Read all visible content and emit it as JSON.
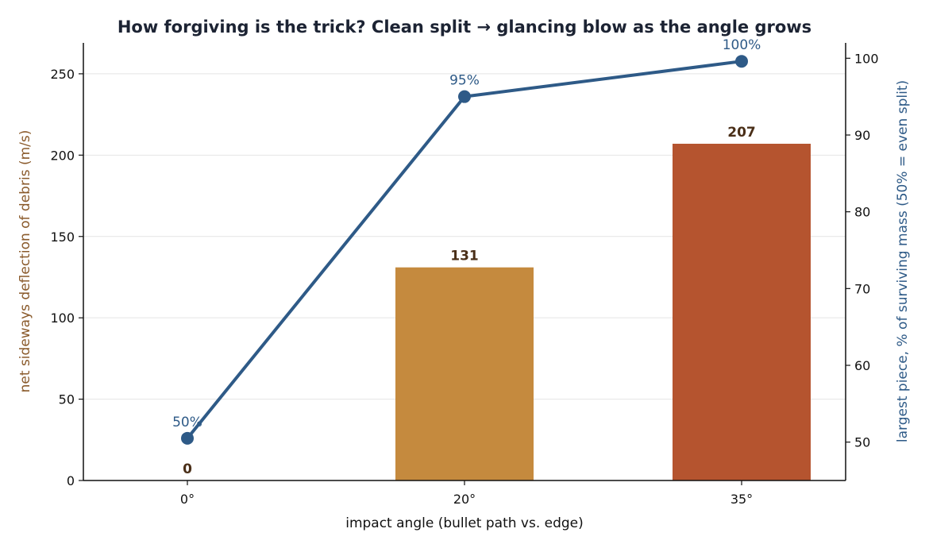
{
  "chart_data": {
    "type": "bar",
    "title": "How forgiving is the trick? Clean split → glancing blow as the angle grows",
    "xlabel": "impact angle (bullet path vs. edge)",
    "categories": [
      "0°",
      "20°",
      "35°"
    ],
    "series": [
      {
        "axis": "left",
        "type": "bar",
        "values": [
          0,
          131,
          207
        ],
        "labels": [
          "0",
          "131",
          "207"
        ],
        "colors": [
          "#c58a3e",
          "#c58a3e",
          "#b5542f"
        ]
      },
      {
        "axis": "right",
        "type": "line",
        "values": [
          50.5,
          95,
          99.6
        ],
        "labels": [
          "50%",
          "95%",
          "100%"
        ],
        "color": "#2e5a87"
      }
    ],
    "ylabel": "net sideways deflection of debris (m/s)",
    "ylim": [
      0,
      269
    ],
    "yticks": [
      0,
      50,
      100,
      150,
      200,
      250
    ],
    "y2label": "largest piece, % of surviving mass  (50% = even split)",
    "y2lim": [
      45,
      102
    ],
    "y2ticks": [
      50,
      60,
      70,
      80,
      90,
      100
    ],
    "grid": "horizontal",
    "colors": {
      "left_axis_label": "#8a5a2b",
      "right_axis_label": "#2e5a87",
      "bar_label": "#4a2f18",
      "grid": "#e4e4e4"
    }
  }
}
